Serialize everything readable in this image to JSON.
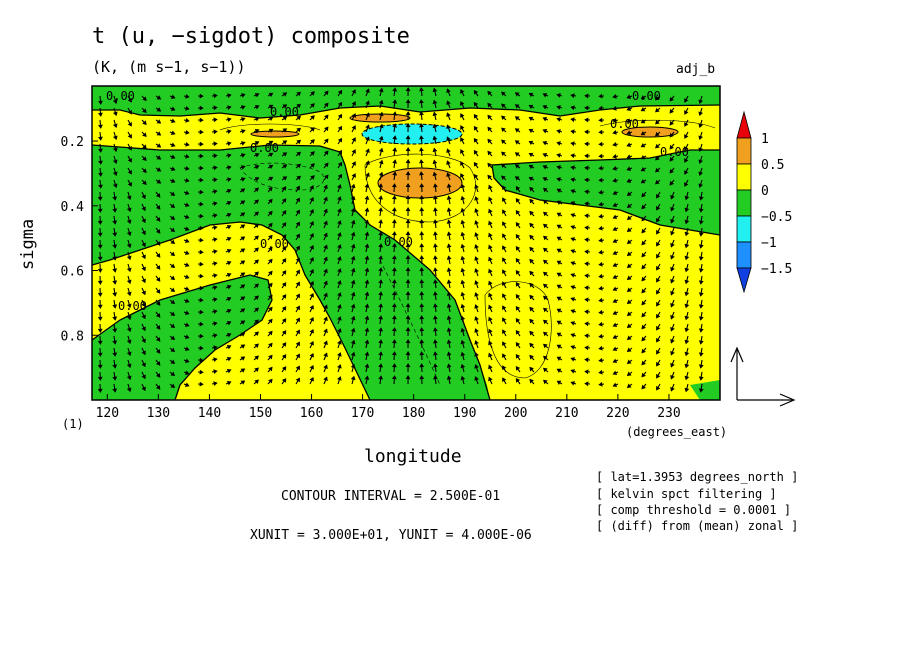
{
  "title": "t (u, −sigdot) composite",
  "subtitle": "(K, (m s−1, s−1))",
  "tag": "adj_b",
  "chart_data": {
    "type": "heatmap",
    "title": "t (u, −sigdot) composite",
    "subtitle": "(K, (m s−1, s−1))",
    "xlabel": "longitude",
    "x_units": "(degrees_east)",
    "ylabel": "sigma",
    "xlim": [
      117,
      240
    ],
    "ylim": [
      1.0,
      0.03
    ],
    "x_ticks": [
      120,
      130,
      140,
      150,
      160,
      170,
      180,
      190,
      200,
      210,
      220,
      230
    ],
    "y_ticks": [
      0.2,
      0.4,
      0.6,
      0.8
    ],
    "y_inverted": true,
    "colorbar": {
      "levels": [
        "1",
        "0.5",
        "0",
        "−0.5",
        "−1",
        "−1.5"
      ],
      "colors": [
        "#e8000b",
        "#f0a01e",
        "#ffff00",
        "#22cc22",
        "#22f0f0",
        "#1e90ff",
        "#1040e0"
      ]
    },
    "contour_label": "0.00",
    "contour_interval": "CONTOUR INTERVAL = 2.500E-01",
    "vector_units": "XUNIT = 3.000E+01, YUNIT = 4.000E-06",
    "panel_label": "(1)",
    "notes": [
      "[ lat=1.3953 degrees_north ]",
      "[ kelvin spct filtering ]",
      "[ comp threshold = 0.0001 ]",
      "[ (diff) from (mean) zonal ]"
    ]
  },
  "colors": {
    "positive": "#ffff00",
    "negative": "#22cc22",
    "strong_positive": "#f0a01e",
    "strong_negative": "#22f0f0"
  }
}
